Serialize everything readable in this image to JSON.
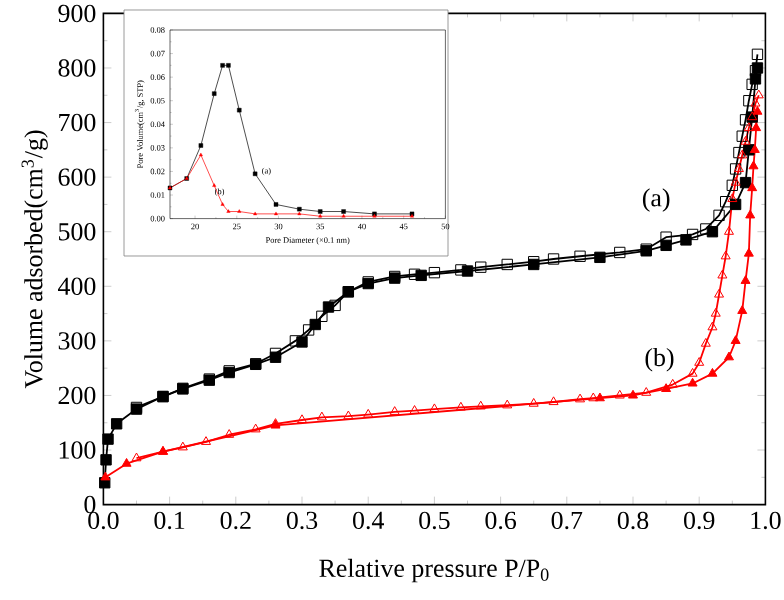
{
  "chart_data": [
    {
      "type": "line",
      "xlabel": "Relative pressure P/P$_{0}$",
      "ylabel": "Volume adsorbed(cm$^{3}$/g)",
      "xlim": [
        0,
        1.0
      ],
      "ylim": [
        0,
        900
      ],
      "xticks": [
        {
          "value": 0,
          "label": "0.0"
        },
        0.1,
        0.2,
        0.3,
        0.4,
        0.5,
        0.6,
        0.7,
        0.8,
        0.9,
        {
          "value": 1.0,
          "label": "1.0"
        }
      ],
      "yticks": [
        0,
        100,
        200,
        300,
        400,
        500,
        600,
        700,
        800,
        900
      ],
      "series": [
        {
          "color": "#000000",
          "marker": "square",
          "x": [
            0.002,
            0.004,
            0.007,
            0.02,
            0.05,
            0.09,
            0.12,
            0.16,
            0.19,
            0.23,
            0.26,
            0.3,
            0.32,
            0.34,
            0.37,
            0.4,
            0.44,
            0.48,
            0.55,
            0.65,
            0.75,
            0.82,
            0.85,
            0.88,
            0.92,
            0.955,
            0.97,
            0.975,
            0.98,
            0.985,
            0.988
          ],
          "values": [
            40,
            82,
            120,
            148,
            175,
            198,
            212,
            228,
            242,
            257,
            270,
            298,
            330,
            362,
            390,
            405,
            415,
            420,
            428,
            440,
            453,
            465,
            475,
            485,
            500,
            550,
            590,
            650,
            710,
            780,
            800
          ]
        },
        {
          "color": "#000000",
          "marker": "square",
          "x": [
            0.988,
            0.985,
            0.98,
            0.975,
            0.97,
            0.965,
            0.96,
            0.955,
            0.95,
            0.94,
            0.93,
            0.91,
            0.89,
            0.85,
            0.82,
            0.78,
            0.72,
            0.68,
            0.65,
            0.61,
            0.57,
            0.54,
            0.5,
            0.47,
            0.44,
            0.4,
            0.37,
            0.35,
            0.33,
            0.31,
            0.29,
            0.26,
            0.23,
            0.19,
            0.16,
            0.12,
            0.09,
            0.05
          ],
          "values": [
            825,
            795,
            770,
            740,
            705,
            675,
            645,
            615,
            585,
            555,
            530,
            505,
            495,
            490,
            468,
            462,
            455,
            450,
            445,
            440,
            435,
            430,
            425,
            422,
            418,
            408,
            390,
            365,
            345,
            320,
            300,
            277,
            258,
            245,
            230,
            213,
            198,
            178
          ]
        },
        {
          "color": "#ff0000",
          "marker": "triangle",
          "x": [
            0.003,
            0.035,
            0.09,
            0.26,
            0.75,
            0.8,
            0.85,
            0.89,
            0.92,
            0.945,
            0.955,
            0.965,
            0.97,
            0.975,
            0.977,
            0.98,
            0.982,
            0.984,
            0.986,
            0.988
          ],
          "values": [
            50,
            75,
            97,
            145,
            195,
            200,
            212,
            222,
            240,
            270,
            300,
            355,
            410,
            460,
            530,
            580,
            620,
            650,
            690,
            720
          ]
        },
        {
          "color": "#ff0000",
          "marker": "triangle",
          "x": [
            0.99,
            0.985,
            0.98,
            0.975,
            0.97,
            0.965,
            0.96,
            0.955,
            0.95,
            0.945,
            0.94,
            0.935,
            0.93,
            0.925,
            0.92,
            0.91,
            0.9,
            0.89,
            0.86,
            0.82,
            0.78,
            0.74,
            0.72,
            0.68,
            0.65,
            0.61,
            0.57,
            0.54,
            0.5,
            0.47,
            0.44,
            0.4,
            0.37,
            0.33,
            0.3,
            0.26,
            0.23,
            0.19,
            0.155,
            0.12,
            0.09,
            0.05
          ],
          "values": [
            750,
            735,
            710,
            690,
            665,
            640,
            615,
            590,
            560,
            500,
            455,
            420,
            385,
            350,
            325,
            295,
            260,
            240,
            220,
            205,
            200,
            195,
            193,
            188,
            185,
            182,
            180,
            178,
            175,
            172,
            170,
            165,
            162,
            160,
            155,
            148,
            138,
            128,
            115,
            105,
            97,
            85
          ]
        }
      ],
      "annotations": [
        "(a)",
        "(b)"
      ]
    },
    {
      "type": "line",
      "xlabel": "Pore Diameter (×0.1 nm)",
      "ylabel": "Pore Volume(cm$^{3}$/g, STP)",
      "xlim": [
        17,
        50
      ],
      "ylim": [
        0,
        0.08
      ],
      "xticks": [
        20,
        25,
        30,
        35,
        40,
        45,
        50
      ],
      "yticks": [
        {
          "value": 0,
          "label": "0.00"
        },
        0.01,
        0.02,
        0.03,
        0.04,
        0.05,
        0.06,
        0.07,
        0.08
      ],
      "series": [
        {
          "color": "#000000",
          "marker": "square",
          "x": [
            17,
            19,
            20.7,
            22.3,
            23.3,
            24,
            25.3,
            27.2,
            29.7,
            32.5,
            35,
            37.8,
            41.5,
            46
          ],
          "values": [
            0.013,
            0.017,
            0.031,
            0.053,
            0.065,
            0.065,
            0.046,
            0.019,
            0.006,
            0.004,
            0.003,
            0.003,
            0.002,
            0.002
          ]
        },
        {
          "color": "#ff0000",
          "marker": "triangle",
          "x": [
            17,
            19,
            20.7,
            22.3,
            23.3,
            24,
            25.3,
            27.2,
            29.7,
            32.5,
            35,
            37.8,
            41.5,
            46
          ],
          "values": [
            0.013,
            0.017,
            0.027,
            0.014,
            0.006,
            0.003,
            0.003,
            0.002,
            0.002,
            0.002,
            0.001,
            0.001,
            0.001,
            0.001
          ]
        }
      ],
      "annotations": [
        "(a)",
        "(b)"
      ]
    }
  ]
}
